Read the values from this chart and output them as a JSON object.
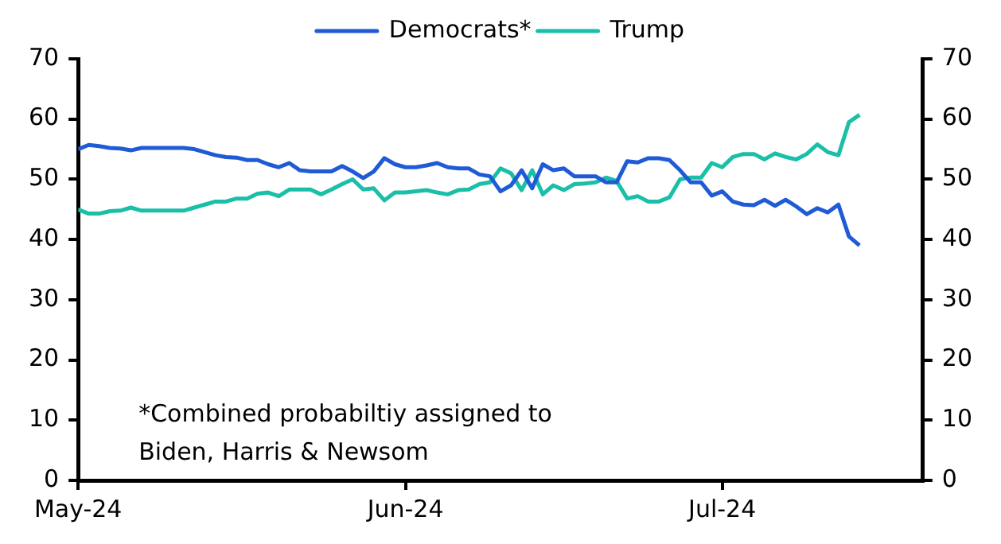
{
  "chart_data": {
    "type": "line",
    "x": [
      "2024-05-01",
      "2024-05-02",
      "2024-05-03",
      "2024-05-04",
      "2024-05-05",
      "2024-05-06",
      "2024-05-07",
      "2024-05-08",
      "2024-05-09",
      "2024-05-10",
      "2024-05-11",
      "2024-05-12",
      "2024-05-13",
      "2024-05-14",
      "2024-05-15",
      "2024-05-16",
      "2024-05-17",
      "2024-05-18",
      "2024-05-19",
      "2024-05-20",
      "2024-05-21",
      "2024-05-22",
      "2024-05-23",
      "2024-05-24",
      "2024-05-25",
      "2024-05-26",
      "2024-05-27",
      "2024-05-28",
      "2024-05-29",
      "2024-05-30",
      "2024-05-31",
      "2024-06-01",
      "2024-06-02",
      "2024-06-03",
      "2024-06-04",
      "2024-06-05",
      "2024-06-06",
      "2024-06-07",
      "2024-06-08",
      "2024-06-09",
      "2024-06-10",
      "2024-06-11",
      "2024-06-12",
      "2024-06-13",
      "2024-06-14",
      "2024-06-15",
      "2024-06-16",
      "2024-06-17",
      "2024-06-18",
      "2024-06-19",
      "2024-06-20",
      "2024-06-21",
      "2024-06-22",
      "2024-06-23",
      "2024-06-24",
      "2024-06-25",
      "2024-06-26",
      "2024-06-27",
      "2024-06-28",
      "2024-06-29",
      "2024-06-30",
      "2024-07-01",
      "2024-07-02",
      "2024-07-03",
      "2024-07-04",
      "2024-07-05",
      "2024-07-06",
      "2024-07-07",
      "2024-07-08",
      "2024-07-09",
      "2024-07-10",
      "2024-07-11",
      "2024-07-12",
      "2024-07-13",
      "2024-07-14"
    ],
    "series": [
      {
        "name": "Democrats*",
        "color": "#1f5bd6",
        "values": [
          55,
          55.7,
          55.5,
          55.2,
          55.1,
          54.8,
          55.2,
          55.2,
          55.2,
          55.2,
          55.2,
          55,
          54.5,
          54,
          53.7,
          53.6,
          53.2,
          53.2,
          52.5,
          52,
          52.7,
          51.5,
          51.3,
          51.3,
          51.3,
          52.2,
          51.3,
          50.2,
          51.3,
          53.5,
          52.5,
          52,
          52,
          52.3,
          52.7,
          52,
          51.8,
          51.8,
          50.8,
          50.5,
          48,
          49,
          51.5,
          48.5,
          52.5,
          51.5,
          51.8,
          50.5,
          50.5,
          50.5,
          49.5,
          49.5,
          53,
          52.8,
          53.5,
          53.5,
          53.2,
          51.5,
          49.5,
          49.5,
          47.3,
          48,
          46.3,
          45.8,
          45.7,
          46.6,
          45.6,
          46.6,
          45.5,
          44.2,
          45.2,
          44.5,
          45.8,
          40.5,
          39
        ]
      },
      {
        "name": "Trump",
        "color": "#1abfa8",
        "values": [
          45,
          44.3,
          44.3,
          44.7,
          44.8,
          45.3,
          44.8,
          44.8,
          44.8,
          44.8,
          44.8,
          45.3,
          45.8,
          46.3,
          46.3,
          46.8,
          46.8,
          47.6,
          47.8,
          47.2,
          48.3,
          48.3,
          48.3,
          47.5,
          48.3,
          49.2,
          50,
          48.3,
          48.5,
          46.5,
          47.8,
          47.8,
          48,
          48.2,
          47.8,
          47.5,
          48.2,
          48.3,
          49.2,
          49.5,
          51.8,
          51,
          48.2,
          51.5,
          47.5,
          49,
          48.2,
          49.2,
          49.3,
          49.5,
          50.3,
          49.7,
          46.8,
          47.2,
          46.3,
          46.3,
          47,
          50,
          50.3,
          50.3,
          52.7,
          52,
          53.7,
          54.2,
          54.2,
          53.3,
          54.3,
          53.7,
          53.3,
          54.2,
          55.8,
          54.5,
          54,
          59.5,
          60.7
        ]
      }
    ],
    "xlim": [
      "2024-05-01",
      "2024-07-20"
    ],
    "xticks": [
      {
        "value": "2024-05-01",
        "label": "May-24"
      },
      {
        "value": "2024-06-01",
        "label": "Jun-24"
      },
      {
        "value": "2024-07-01",
        "label": "Jul-24"
      }
    ],
    "ylim": [
      0,
      70
    ],
    "yticks": [
      0,
      10,
      20,
      30,
      40,
      50,
      60,
      70
    ],
    "y2lim": [
      0,
      70
    ],
    "y2ticks": [
      0,
      10,
      20,
      30,
      40,
      50,
      60,
      70
    ],
    "legend": "top",
    "grid": false,
    "marker": "none",
    "line_style": "solid",
    "annotations": [
      "*Combined probabiltiy assigned to Biden, Harris & Newsom"
    ]
  }
}
